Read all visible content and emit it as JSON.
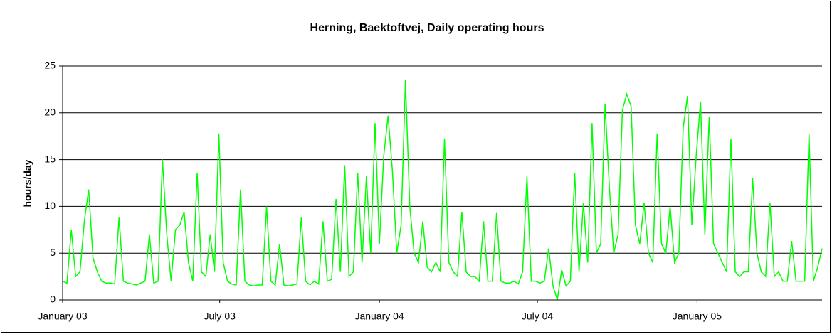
{
  "chart_data": {
    "type": "line",
    "title": "Herning, Baektoftvej, Daily operating hours",
    "y_label": "hours/day",
    "color": "#00ff00",
    "grid": true,
    "xlim": [
      0,
      875
    ],
    "xticks": [
      {
        "value": 0,
        "label": "January 03"
      },
      {
        "value": 181,
        "label": "July 03"
      },
      {
        "value": 365,
        "label": "January 04"
      },
      {
        "value": 547,
        "label": "July 04"
      },
      {
        "value": 731,
        "label": "January 05"
      }
    ],
    "ylim": [
      0,
      25
    ],
    "yticks": [
      0,
      5,
      10,
      15,
      20,
      25
    ],
    "x": [
      0,
      5,
      10,
      15,
      20,
      25,
      30,
      35,
      40,
      45,
      50,
      55,
      60,
      65,
      70,
      75,
      80,
      85,
      90,
      95,
      100,
      105,
      110,
      115,
      120,
      125,
      130,
      135,
      140,
      145,
      150,
      155,
      160,
      165,
      170,
      175,
      180,
      185,
      190,
      195,
      200,
      205,
      210,
      215,
      220,
      225,
      230,
      235,
      240,
      245,
      250,
      255,
      260,
      265,
      270,
      275,
      280,
      285,
      290,
      295,
      300,
      305,
      310,
      315,
      320,
      325,
      330,
      335,
      340,
      345,
      350,
      355,
      360,
      365,
      370,
      375,
      380,
      385,
      390,
      395,
      400,
      405,
      410,
      415,
      420,
      425,
      430,
      435,
      440,
      445,
      450,
      455,
      460,
      465,
      470,
      475,
      480,
      485,
      490,
      495,
      500,
      505,
      510,
      515,
      520,
      525,
      530,
      535,
      540,
      545,
      550,
      555,
      560,
      565,
      570,
      575,
      580,
      585,
      590,
      595,
      600,
      605,
      610,
      615,
      620,
      625,
      630,
      635,
      640,
      645,
      650,
      655,
      660,
      665,
      670,
      675,
      680,
      685,
      690,
      695,
      700,
      705,
      710,
      715,
      720,
      725,
      730,
      735,
      740,
      745,
      750,
      755,
      760,
      765,
      770,
      775,
      780,
      785,
      790,
      795,
      800,
      805,
      810,
      815,
      820,
      825,
      830,
      835,
      840,
      845,
      850,
      855,
      860,
      865,
      870,
      875
    ],
    "values": [
      2,
      1.8,
      7.5,
      2.5,
      3,
      8.4,
      11.8,
      4.5,
      3,
      2,
      1.8,
      1.8,
      1.7,
      8.8,
      2,
      1.8,
      1.7,
      1.6,
      1.8,
      2,
      7,
      1.8,
      2,
      15,
      7,
      2,
      7.5,
      8,
      9.4,
      4,
      2,
      13.6,
      3,
      2.5,
      7,
      3,
      17.8,
      4,
      2,
      1.7,
      1.6,
      11.8,
      2,
      1.6,
      1.5,
      1.6,
      1.6,
      10,
      2,
      1.6,
      6,
      1.6,
      1.5,
      1.6,
      1.7,
      8.8,
      2,
      1.6,
      2,
      1.7,
      8.4,
      2,
      2.2,
      10.8,
      3,
      14.4,
      2.5,
      3,
      13.6,
      4,
      13.2,
      5,
      18.9,
      6,
      15.4,
      19.7,
      13.8,
      5,
      8,
      23.5,
      10,
      5,
      4,
      8.4,
      3.5,
      3,
      4,
      3,
      17.2,
      4,
      3,
      2.5,
      9.4,
      3,
      2.5,
      2.5,
      2,
      8.4,
      2,
      2,
      9.3,
      2,
      1.8,
      1.8,
      2,
      1.7,
      3,
      13.2,
      2,
      2,
      1.8,
      2,
      5.5,
      1.5,
      0,
      3.2,
      1.5,
      2,
      13.6,
      3,
      10.4,
      4,
      18.9,
      5,
      6,
      20.9,
      12,
      5,
      7,
      20.3,
      22,
      20.7,
      8,
      6,
      10.4,
      5,
      4,
      17.8,
      6,
      5,
      10,
      4,
      5,
      18.4,
      21.8,
      8,
      15.4,
      21.2,
      7,
      19.6,
      6,
      5,
      4,
      3,
      17.2,
      3,
      2.5,
      3,
      3,
      13,
      5,
      3,
      2.5,
      10.4,
      2.5,
      3,
      2,
      2,
      6.3,
      2,
      2,
      2,
      17.7,
      2,
      3.5,
      5.5
    ]
  }
}
